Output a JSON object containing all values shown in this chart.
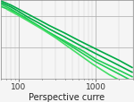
{
  "title": "",
  "xlabel": "Perspective curre",
  "ylabel": "",
  "background_color": "#f5f5f5",
  "grid_major_color": "#aaaaaa",
  "grid_minor_color": "#cccccc",
  "xmin": 60,
  "xmax": 3000,
  "ymin": 1,
  "ymax": 100000,
  "curves": [
    {
      "x": [
        60,
        80,
        100,
        130,
        180,
        250,
        400,
        600,
        1000,
        2000,
        3000
      ],
      "y": [
        90000,
        50000,
        28000,
        14000,
        6000,
        2500,
        800,
        280,
        80,
        15,
        5
      ],
      "color": "#00aa44",
      "linewidth": 1.2
    },
    {
      "x": [
        60,
        80,
        100,
        130,
        180,
        250,
        400,
        600,
        1000,
        2000,
        3000
      ],
      "y": [
        70000,
        38000,
        20000,
        9000,
        3800,
        1500,
        450,
        150,
        40,
        7,
        2.5
      ],
      "color": "#00aa44",
      "linewidth": 1.2
    },
    {
      "x": [
        60,
        80,
        100,
        130,
        180,
        250,
        400,
        700,
        1000,
        2000,
        3000
      ],
      "y": [
        55000,
        28000,
        14000,
        6000,
        2400,
        900,
        250,
        55,
        18,
        3.5,
        1.3
      ],
      "color": "#22cc55",
      "linewidth": 1.2
    },
    {
      "x": [
        60,
        90,
        120,
        160,
        220,
        350,
        600,
        1000,
        2000,
        3000
      ],
      "y": [
        40000,
        18000,
        8500,
        3500,
        1300,
        320,
        60,
        12,
        2,
        0.7
      ],
      "color": "#22cc55",
      "linewidth": 1.2
    },
    {
      "x": [
        70,
        100,
        140,
        200,
        300,
        500,
        900,
        1500,
        3000
      ],
      "y": [
        28000,
        11000,
        4200,
        1500,
        420,
        70,
        9,
        1.8,
        0.3
      ],
      "color": "#44dd66",
      "linewidth": 1.2
    }
  ],
  "xtick_labels": [
    "100",
    "1000"
  ],
  "xtick_values": [
    100,
    1000
  ],
  "xlabel_fontsize": 7,
  "tick_fontsize": 6.5
}
